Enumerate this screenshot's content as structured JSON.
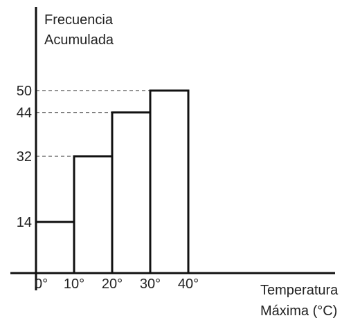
{
  "chart_data": {
    "type": "bar",
    "ylabel_lines": [
      "Frecuencia",
      "Acumulada"
    ],
    "xlabel_lines": [
      "Temperatura",
      "Máxima (°C)"
    ],
    "x_tick_labels": [
      "0°",
      "10°",
      "20°",
      "30°",
      "40°"
    ],
    "x_edges": [
      0,
      10,
      20,
      30,
      40
    ],
    "bars": [
      {
        "from": 0,
        "to": 10,
        "value": 14
      },
      {
        "from": 10,
        "to": 20,
        "value": 32
      },
      {
        "from": 20,
        "to": 30,
        "value": 44
      },
      {
        "from": 30,
        "to": 40,
        "value": 50
      }
    ],
    "y_tick_labels": [
      "14",
      "32",
      "44",
      "50"
    ],
    "y_ticks": [
      14,
      32,
      44,
      50
    ],
    "dashed_reference_lines": true,
    "grid": false
  }
}
